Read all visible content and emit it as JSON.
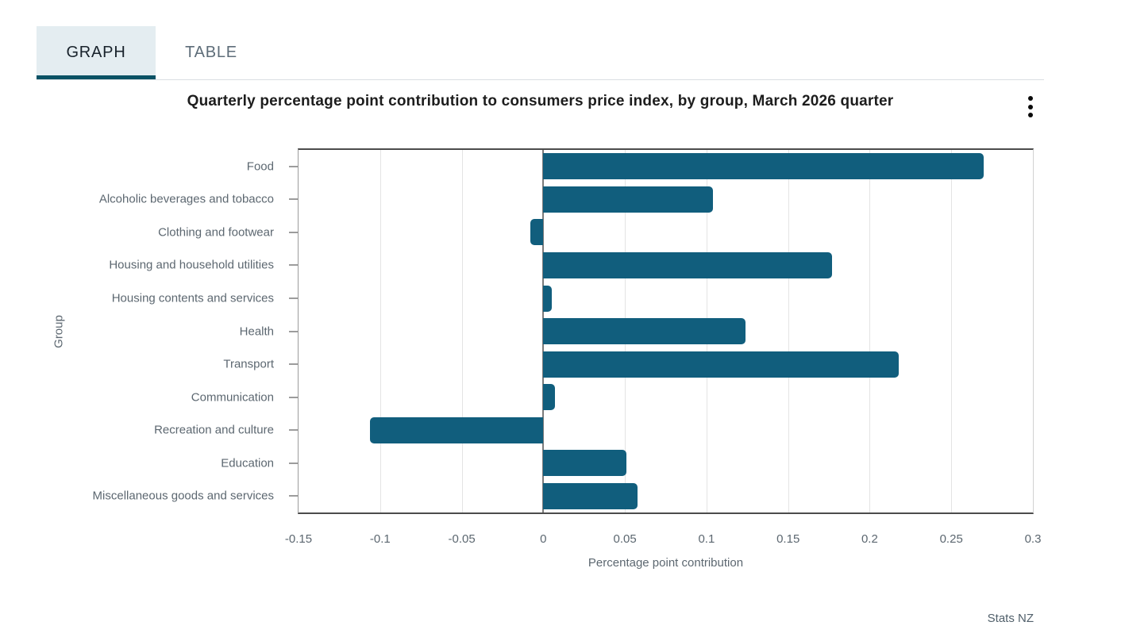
{
  "tabs": [
    {
      "label": "GRAPH",
      "active": true
    },
    {
      "label": "TABLE",
      "active": false
    }
  ],
  "icons": {
    "kebab_menu": "vertical-ellipsis"
  },
  "colors": {
    "bar": "#115e7d",
    "tab_active_underline": "#0a5265",
    "tab_active_bg": "#e4edf1",
    "axis_text": "#5c6770"
  },
  "chart_data": {
    "type": "bar",
    "orientation": "horizontal",
    "title": "Quarterly percentage point contribution to consumers price index, by group, March 2026 quarter",
    "xlabel": "Percentage point contribution",
    "ylabel": "Group",
    "xlim": [
      -0.15,
      0.3
    ],
    "xticks": [
      -0.15,
      -0.1,
      -0.05,
      0,
      0.05,
      0.1,
      0.15,
      0.2,
      0.25,
      0.3
    ],
    "grid": true,
    "legend": false,
    "bar_color": "#115e7d",
    "categories": [
      "Food",
      "Alcoholic beverages and tobacco",
      "Clothing and footwear",
      "Housing and household utilities",
      "Housing contents and services",
      "Health",
      "Transport",
      "Communication",
      "Recreation and culture",
      "Education",
      "Miscellaneous goods and services"
    ],
    "values": [
      0.27,
      0.104,
      -0.008,
      0.177,
      0.005,
      0.124,
      0.218,
      0.007,
      -0.106,
      0.051,
      0.058
    ]
  },
  "source": "Stats NZ"
}
